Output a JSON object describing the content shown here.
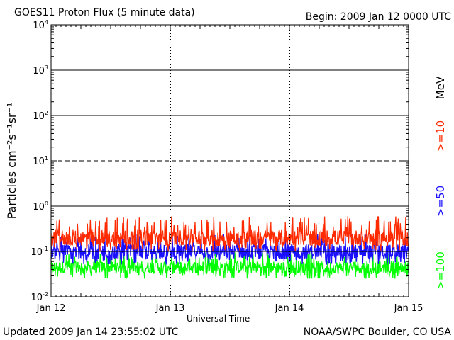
{
  "header": {
    "title": "GOES11 Proton Flux (5 minute data)",
    "begin": "Begin: 2009 Jan 12 0000 UTC"
  },
  "footer": {
    "updated": "Updated 2009 Jan 14 23:55:02 UTC",
    "source": "NOAA/SWPC Boulder, CO USA"
  },
  "chart_data": {
    "type": "line",
    "title": "GOES11 Proton Flux (5 minute data)",
    "xlabel": "Universal Time",
    "ylabel": "Particles cm⁻²s⁻¹sr⁻¹",
    "yscale": "log",
    "ylim": [
      0.01,
      10000
    ],
    "x_ticks": [
      "Jan 12",
      "Jan 13",
      "Jan 14",
      "Jan 15"
    ],
    "y_ticks": [
      {
        "base": "10",
        "exp": "-2"
      },
      {
        "base": "10",
        "exp": "-1"
      },
      {
        "base": "10",
        "exp": "0"
      },
      {
        "base": "10",
        "exp": "1"
      },
      {
        "base": "10",
        "exp": "2"
      },
      {
        "base": "10",
        "exp": "3"
      },
      {
        "base": "10",
        "exp": "4"
      }
    ],
    "unit_label": "MeV",
    "legend_position": "right",
    "grid": true,
    "series": [
      {
        "name": ">=10",
        "color": "#ff2a00",
        "typical": 0.2,
        "range": [
          0.1,
          0.6
        ]
      },
      {
        "name": ">=50",
        "color": "#1a10ff",
        "typical": 0.1,
        "range": [
          0.05,
          0.25
        ]
      },
      {
        "name": ">=100",
        "color": "#00ff00",
        "typical": 0.045,
        "range": [
          0.025,
          0.1
        ]
      }
    ]
  }
}
